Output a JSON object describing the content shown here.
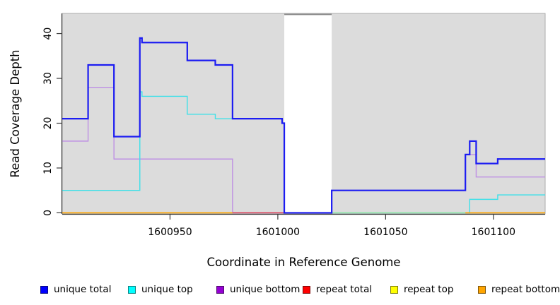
{
  "figure": {
    "background": "#ffffff",
    "panel_fill": "#DCDCDC",
    "panel_border": "#ABABAB",
    "axis_color": "#3a3a3a"
  },
  "chart_data": {
    "type": "step-line",
    "title": "",
    "xlabel": "Coordinate in Reference Genome",
    "ylabel": "Read Coverage Depth",
    "x_range": [
      1600900,
      1601124
    ],
    "y_range": [
      -0.25,
      44.5
    ],
    "x_ticks": [
      1600950,
      1601000,
      1601050,
      1601100
    ],
    "y_ticks": [
      0,
      10,
      20,
      30,
      40
    ],
    "grid": "off",
    "legend_position": "bottom",
    "gap_band": {
      "x_start": 1601003,
      "x_end": 1601025,
      "fill": "#FFFFFF",
      "top_edge_color": "#8C8C8C"
    },
    "legend": [
      {
        "label": "unique total",
        "color": "#0000FF"
      },
      {
        "label": "unique top",
        "color": "#00FFFF"
      },
      {
        "label": "unique bottom",
        "color": "#9400D3"
      },
      {
        "label": "repeat total",
        "color": "#FF0000"
      },
      {
        "label": "repeat top",
        "color": "#FFFF00"
      },
      {
        "label": "repeat bottom",
        "color": "#FFA500"
      }
    ],
    "series": [
      {
        "name": "unique bottom",
        "color": "#BE8FE4",
        "width": 1.4,
        "x_end": 1601124,
        "steps": [
          [
            1600900,
            16
          ],
          [
            1600912,
            28
          ],
          [
            1600924,
            12
          ],
          [
            1600979,
            0
          ],
          [
            1601025,
            5
          ],
          [
            1601087,
            13
          ],
          [
            1601092,
            8
          ]
        ]
      },
      {
        "name": "repeat total",
        "color": "#E0374B",
        "width": 1.4,
        "x_end": 1601003,
        "steps": [
          [
            1600979,
            0
          ]
        ]
      },
      {
        "name": "unique top",
        "color": "#3FE0E8",
        "width": 1.4,
        "x_end": 1601124,
        "steps": [
          [
            1600900,
            5
          ],
          [
            1600936,
            27
          ],
          [
            1600937,
            26
          ],
          [
            1600958,
            22
          ],
          [
            1600971,
            21
          ],
          [
            1601002,
            20
          ],
          [
            1601003,
            0
          ],
          [
            1601089,
            3
          ],
          [
            1601102,
            4
          ]
        ]
      },
      {
        "name": "unique top and repeat top overlap",
        "color": "#95E8A0",
        "width": 1.4,
        "x_end": 1601087,
        "steps": [
          [
            1601025,
            0
          ]
        ]
      },
      {
        "name": "repeat bottom left",
        "color": "#FFA500",
        "width": 1.7,
        "x_end": 1600979,
        "steps": [
          [
            1600900,
            0
          ]
        ]
      },
      {
        "name": "repeat bottom right",
        "color": "#FFA500",
        "width": 1.7,
        "x_end": 1601124,
        "steps": [
          [
            1601087,
            0
          ]
        ]
      },
      {
        "name": "unique total",
        "color": "#1C1CF2",
        "width": 2.2,
        "x_end": 1601124,
        "steps": [
          [
            1600900,
            21
          ],
          [
            1600912,
            33
          ],
          [
            1600924,
            17
          ],
          [
            1600936,
            39
          ],
          [
            1600937,
            38
          ],
          [
            1600958,
            34
          ],
          [
            1600971,
            33
          ],
          [
            1600979,
            21
          ],
          [
            1601002,
            20
          ],
          [
            1601003,
            0
          ],
          [
            1601025,
            5
          ],
          [
            1601087,
            13
          ],
          [
            1601089,
            16
          ],
          [
            1601092,
            11
          ],
          [
            1601102,
            12
          ]
        ]
      }
    ]
  }
}
